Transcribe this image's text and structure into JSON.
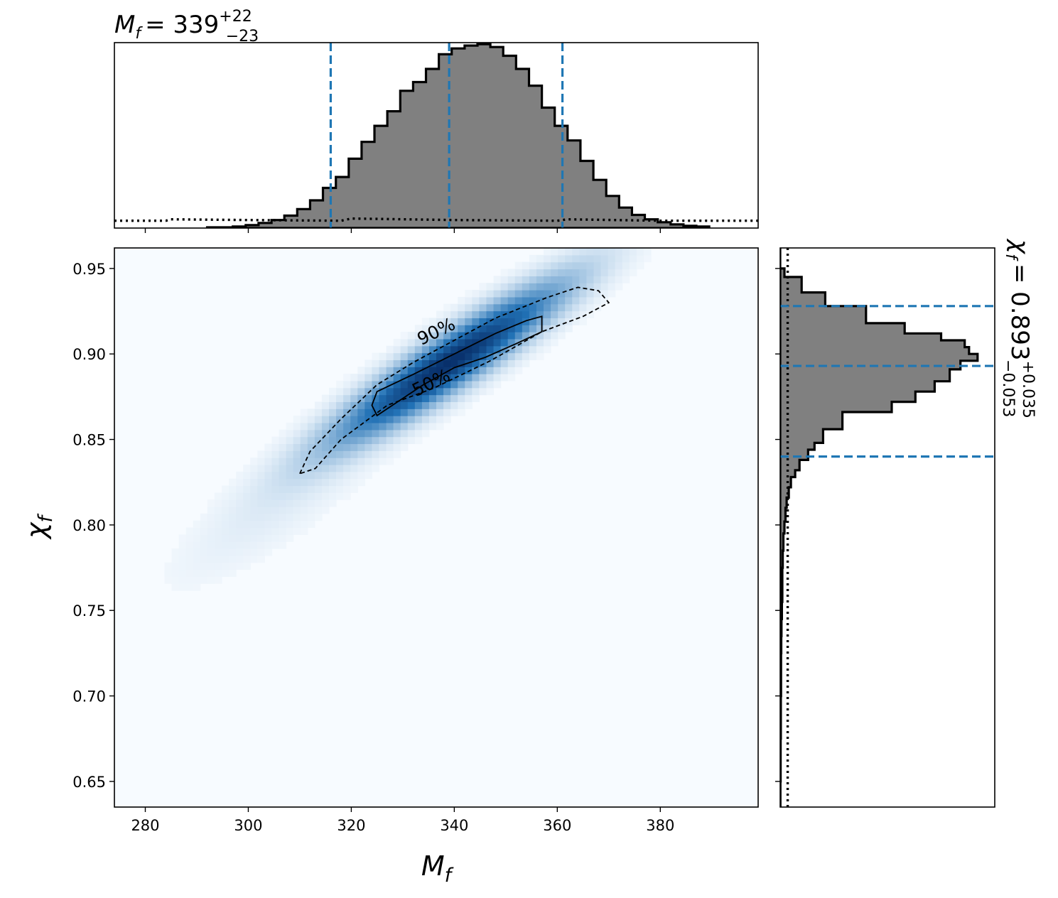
{
  "colors": {
    "credible_line": "#1f77b4",
    "hist_fill": "#808080",
    "hist_edge": "#000000",
    "density_low": "#f7fbff",
    "density_high": "#08306b",
    "contour": "#000000"
  },
  "chart_data": [
    {
      "panel": "joint",
      "type": "heatmap",
      "xlabel_main": "M",
      "xlabel_sub": "f",
      "ylabel_main": "χ",
      "ylabel_sub": "f",
      "xlim": [
        274,
        399
      ],
      "ylim": [
        0.635,
        0.962
      ],
      "xticks": [
        280,
        300,
        320,
        340,
        360,
        380
      ],
      "xtick_labels": [
        "280",
        "300",
        "320",
        "340",
        "360",
        "380"
      ],
      "yticks": [
        0.65,
        0.7,
        0.75,
        0.8,
        0.85,
        0.9,
        0.95
      ],
      "ytick_labels": [
        "0.65",
        "0.70",
        "0.75",
        "0.80",
        "0.85",
        "0.90",
        "0.95"
      ],
      "density": {
        "center": [
          339.0,
          0.895
        ],
        "sigma_along_axis": 15,
        "sigma_across_axis": 0.012,
        "slope": 0.00193
      },
      "contours": [
        {
          "level": "50%",
          "label": "50%",
          "style": "solid",
          "points": [
            [
              325,
              0.878
            ],
            [
              332,
              0.888
            ],
            [
              340,
              0.9
            ],
            [
              348,
              0.912
            ],
            [
              354,
              0.9195
            ],
            [
              357,
              0.922
            ],
            [
              357,
              0.913
            ],
            [
              352,
              0.906
            ],
            [
              346,
              0.898
            ],
            [
              340,
              0.892
            ],
            [
              334,
              0.882
            ],
            [
              328,
              0.87
            ],
            [
              325,
              0.864
            ],
            [
              324,
              0.87
            ]
          ]
        },
        {
          "level": "90%",
          "label": "90%",
          "style": "dashed",
          "points": [
            [
              310,
              0.83
            ],
            [
              312,
              0.843
            ],
            [
              318,
              0.862
            ],
            [
              325,
              0.882
            ],
            [
              332,
              0.895
            ],
            [
              340,
              0.908
            ],
            [
              348,
              0.921
            ],
            [
              358,
              0.933
            ],
            [
              364,
              0.939
            ],
            [
              368,
              0.937
            ],
            [
              370,
              0.93
            ],
            [
              365,
              0.922
            ],
            [
              357,
              0.913
            ],
            [
              347,
              0.896
            ],
            [
              336,
              0.88
            ],
            [
              327,
              0.87
            ],
            [
              318,
              0.85
            ],
            [
              313,
              0.833
            ]
          ]
        }
      ]
    },
    {
      "panel": "top-marginal",
      "type": "bar",
      "title_main": "M",
      "title_sub": "f",
      "title_value": "= 339",
      "title_upper": "+22",
      "title_lower": "−23",
      "bin_edges": [
        292,
        294.5,
        297,
        299.5,
        302,
        304.5,
        307,
        309.5,
        312,
        314.5,
        317,
        319.5,
        322,
        324.5,
        327,
        329.5,
        332,
        334.5,
        337,
        339.5,
        342,
        344.5,
        347,
        349.5,
        352,
        354.5,
        357,
        359.5,
        362,
        364.5,
        367,
        369.5,
        372,
        374.5,
        377,
        379.5,
        382,
        384.5,
        387,
        389.5
      ],
      "counts": [
        1,
        1,
        2,
        4,
        7,
        11,
        17,
        26,
        38,
        55,
        70,
        95,
        118,
        140,
        160,
        188,
        200,
        218,
        238,
        246,
        250,
        252,
        248,
        236,
        218,
        195,
        165,
        140,
        120,
        92,
        66,
        44,
        28,
        18,
        12,
        8,
        5,
        3,
        2
      ],
      "ylim": [
        0,
        254
      ],
      "prior": {
        "x": [
          274,
          284,
          285,
          300,
          318,
          320,
          340,
          360,
          362,
          380,
          399
        ],
        "y": [
          10,
          10,
          12,
          11,
          10,
          13,
          11,
          10,
          12,
          10,
          10
        ]
      },
      "credible_lines": [
        316,
        339,
        361
      ]
    },
    {
      "panel": "right-marginal",
      "type": "bar",
      "orientation": "horizontal",
      "title_main": "χ",
      "title_sub": "f",
      "title_value": "= 0.893",
      "title_upper": "+0.035",
      "title_lower": "−0.053",
      "bin_edges": [
        0.962,
        0.95,
        0.945,
        0.936,
        0.928,
        0.918,
        0.912,
        0.908,
        0.904,
        0.9,
        0.896,
        0.891,
        0.884,
        0.878,
        0.872,
        0.866,
        0.856,
        0.848,
        0.844,
        0.838,
        0.832,
        0.828,
        0.822,
        0.816,
        0.81,
        0.802,
        0.795,
        0.785,
        0.775,
        0.765,
        0.755,
        0.745,
        0.735,
        0.725,
        0.7,
        0.675,
        0.65,
        0.635
      ],
      "counts": [
        0,
        2,
        10,
        21,
        40,
        58,
        75,
        86,
        88,
        92,
        84,
        79,
        72,
        63,
        52,
        29,
        20,
        16,
        13,
        9,
        7,
        5,
        4,
        3,
        2.5,
        2,
        1.5,
        1.2,
        1,
        1,
        0.8,
        0.6,
        0.5,
        0.4,
        0.3,
        0.2,
        0.1
      ],
      "xlim": [
        0,
        100
      ],
      "prior_x": 3.5,
      "credible_lines": [
        0.84,
        0.893,
        0.928
      ]
    }
  ]
}
